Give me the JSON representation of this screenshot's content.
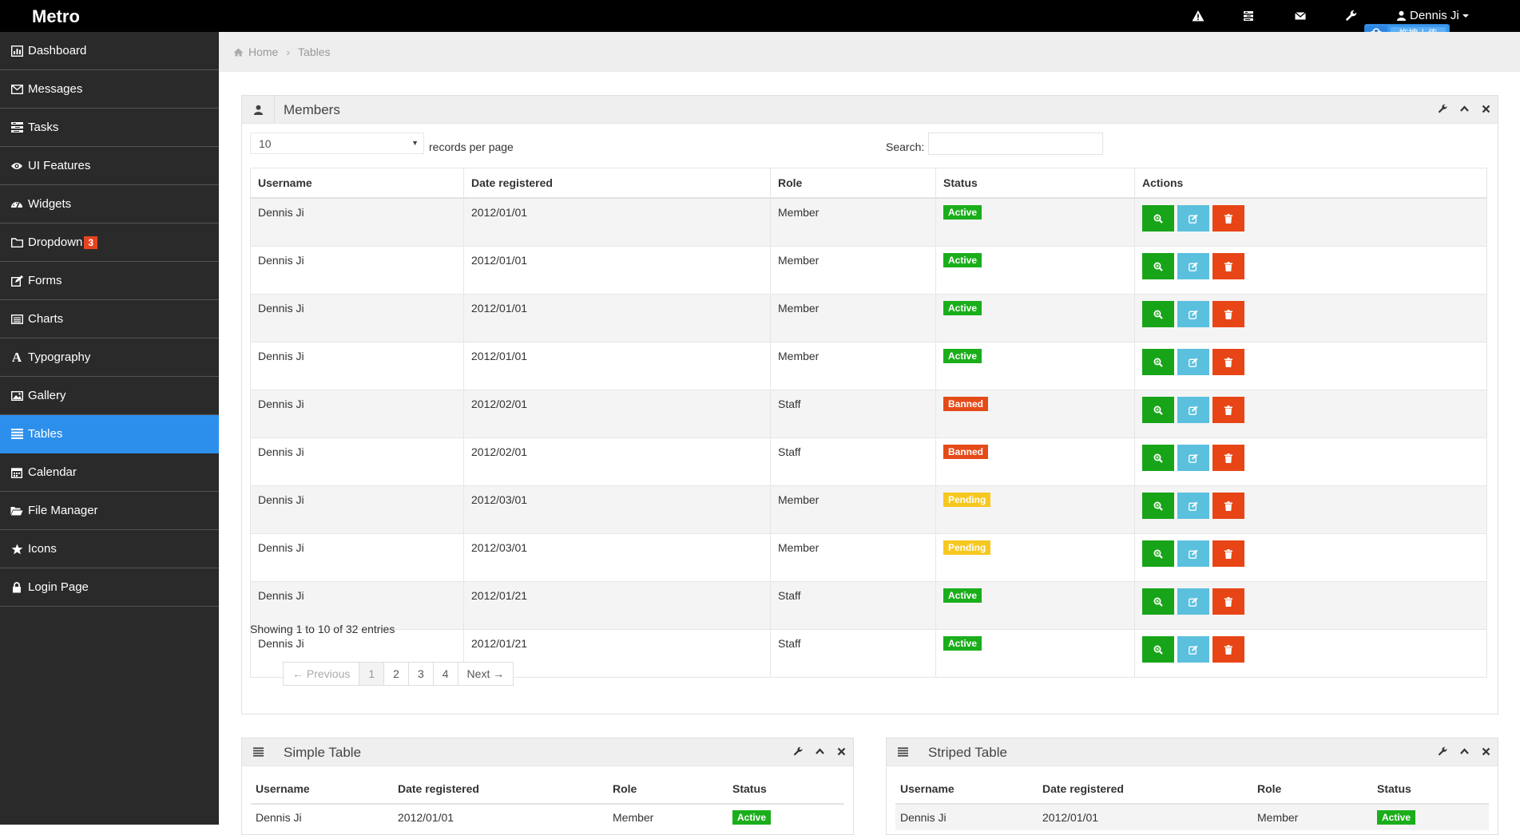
{
  "topbar": {
    "brand": "Metro",
    "icons": [
      "warning-icon",
      "tasks-icon",
      "envelope-icon",
      "wrench-icon"
    ],
    "user_name": "Dennis Ji",
    "upload_label": "拖拽上传"
  },
  "sidebar": {
    "items": [
      {
        "label": "Dashboard",
        "icon": "bar-chart-icon"
      },
      {
        "label": "Messages",
        "icon": "envelope-icon"
      },
      {
        "label": "Tasks",
        "icon": "tasks-icon"
      },
      {
        "label": "UI Features",
        "icon": "eye-icon"
      },
      {
        "label": "Widgets",
        "icon": "dashboard-icon"
      },
      {
        "label": "Dropdown",
        "icon": "folder-icon",
        "badge": "3"
      },
      {
        "label": "Forms",
        "icon": "edit-icon"
      },
      {
        "label": "Charts",
        "icon": "list-alt-icon"
      },
      {
        "label": "Typography",
        "icon": "font-icon"
      },
      {
        "label": "Gallery",
        "icon": "picture-icon"
      },
      {
        "label": "Tables",
        "icon": "align-justify-icon",
        "active": true
      },
      {
        "label": "Calendar",
        "icon": "calendar-icon"
      },
      {
        "label": "File Manager",
        "icon": "folder-open-icon"
      },
      {
        "label": "Icons",
        "icon": "star-icon"
      },
      {
        "label": "Login Page",
        "icon": "lock-icon"
      }
    ]
  },
  "breadcrumb": {
    "home": "Home",
    "current": "Tables"
  },
  "members": {
    "title": "Members",
    "length_value": "10",
    "length_label": "records per page",
    "search_label": "Search:",
    "search_value": "",
    "columns": [
      "Username",
      "Date registered",
      "Role",
      "Status",
      "Actions"
    ],
    "rows": [
      {
        "username": "Dennis Ji",
        "date": "2012/01/01",
        "role": "Member",
        "status": "Active"
      },
      {
        "username": "Dennis Ji",
        "date": "2012/01/01",
        "role": "Member",
        "status": "Active"
      },
      {
        "username": "Dennis Ji",
        "date": "2012/01/01",
        "role": "Member",
        "status": "Active"
      },
      {
        "username": "Dennis Ji",
        "date": "2012/01/01",
        "role": "Member",
        "status": "Active"
      },
      {
        "username": "Dennis Ji",
        "date": "2012/02/01",
        "role": "Staff",
        "status": "Banned"
      },
      {
        "username": "Dennis Ji",
        "date": "2012/02/01",
        "role": "Staff",
        "status": "Banned"
      },
      {
        "username": "Dennis Ji",
        "date": "2012/03/01",
        "role": "Member",
        "status": "Pending"
      },
      {
        "username": "Dennis Ji",
        "date": "2012/03/01",
        "role": "Member",
        "status": "Pending"
      },
      {
        "username": "Dennis Ji",
        "date": "2012/01/21",
        "role": "Staff",
        "status": "Active"
      },
      {
        "username": "Dennis Ji",
        "date": "2012/01/21",
        "role": "Staff",
        "status": "Active"
      }
    ],
    "info": "Showing 1 to 10 of 32 entries",
    "pagination": {
      "previous": "← Previous",
      "pages": [
        "1",
        "2",
        "3",
        "4"
      ],
      "current": "1",
      "next": "Next →"
    }
  },
  "simple_table": {
    "title": "Simple Table",
    "columns": [
      "Username",
      "Date registered",
      "Role",
      "Status"
    ],
    "rows": [
      {
        "username": "Dennis Ji",
        "date": "2012/01/01",
        "role": "Member",
        "status": "Active"
      }
    ]
  },
  "striped_table": {
    "title": "Striped Table",
    "columns": [
      "Username",
      "Date registered",
      "Role",
      "Status"
    ],
    "rows": [
      {
        "username": "Dennis Ji",
        "date": "2012/01/01",
        "role": "Member",
        "status": "Active"
      }
    ]
  },
  "colors": {
    "sidebar_bg": "#2a2a2a",
    "active_blue": "#2d8fec",
    "status_active": "#1bae1b",
    "status_banned": "#e54a19",
    "status_pending": "#f6c71f",
    "action_view": "#18a418",
    "action_edit": "#5bc0de",
    "action_delete": "#e84517"
  }
}
